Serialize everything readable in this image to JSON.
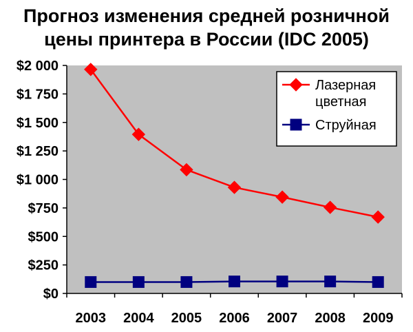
{
  "chart_data": {
    "type": "line",
    "title_lines": [
      "Прогноз изменения средней розничной",
      "цены принтера в России (IDC 2005)"
    ],
    "x": [
      "2003",
      "2004",
      "2005",
      "2006",
      "2007",
      "2008",
      "2009"
    ],
    "ylim": [
      0,
      2000
    ],
    "y_ticks": [
      0,
      250,
      500,
      750,
      1000,
      1250,
      1500,
      1750,
      2000
    ],
    "y_tick_labels": [
      "$0",
      "$250",
      "$500",
      "$750",
      "$1 000",
      "$1 250",
      "$1 500",
      "$1 750",
      "$2 000"
    ],
    "grid": false,
    "plot_background": "#c0c0c0",
    "legend_position": "top-right",
    "series": [
      {
        "name_lines": [
          "Лазерная",
          "цветная"
        ],
        "values": [
          1965,
          1395,
          1085,
          930,
          845,
          755,
          670
        ],
        "color": "#ff0000",
        "marker": "diamond"
      },
      {
        "name_lines": [
          "Струйная"
        ],
        "values": [
          100,
          100,
          100,
          105,
          105,
          105,
          100
        ],
        "color": "#000080",
        "marker": "square"
      }
    ]
  }
}
